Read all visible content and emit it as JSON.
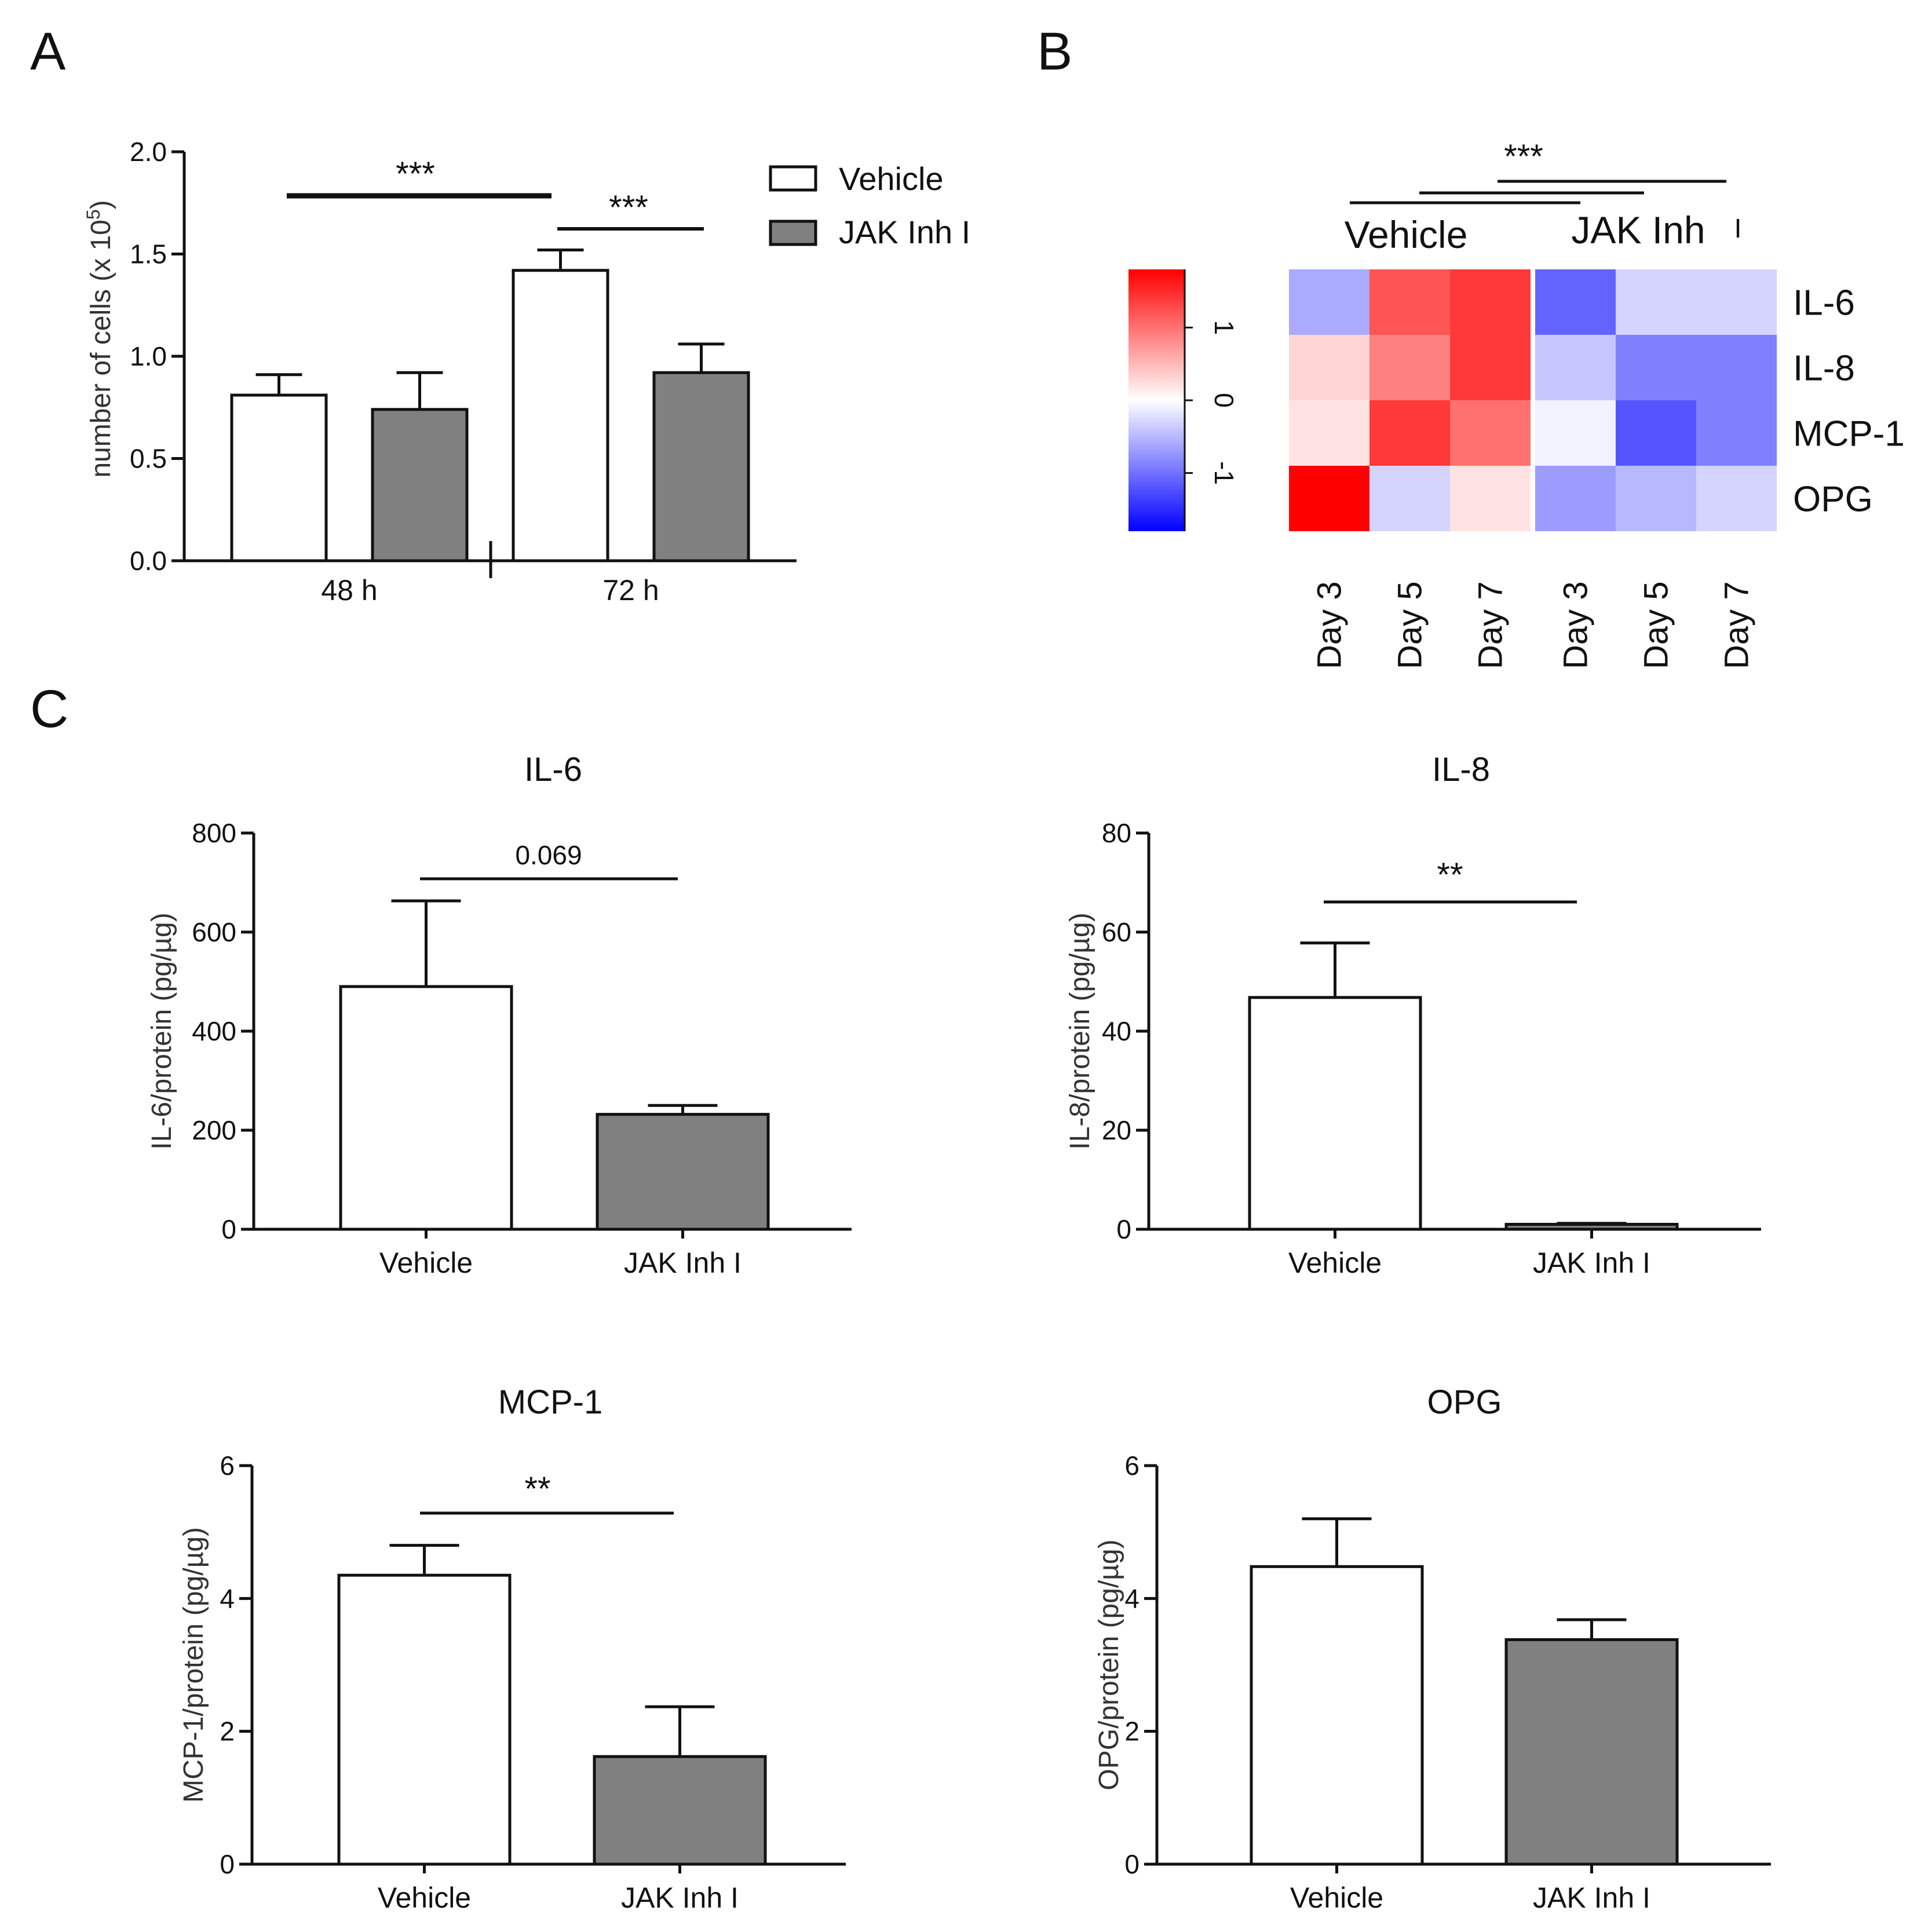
{
  "colors": {
    "vehicle_fill": "#ffffff",
    "jak_fill": "#808080",
    "stroke": "#111111",
    "heat_low": "#0000ff",
    "heat_mid": "#ffffff",
    "heat_high": "#ff0000"
  },
  "panels": {
    "a": {
      "letter": "A"
    },
    "b": {
      "letter": "B"
    },
    "c": {
      "letter": "C"
    }
  },
  "chart_data": [
    {
      "id": "A",
      "type": "bar",
      "title": "",
      "ylabel": "number of cells (x 10",
      "ylabel_sup": "5",
      "ylabel_close": ")",
      "ylim": [
        0,
        2.0
      ],
      "yticks": [
        "0.0",
        "0.5",
        "1.0",
        "1.5",
        "2.0"
      ],
      "categories": [
        "48 h",
        "72 h"
      ],
      "legend": [
        "Vehicle",
        "JAK Inh I"
      ],
      "legend_position": "top-right",
      "series": [
        {
          "name": "Vehicle",
          "values": [
            0.81,
            1.42
          ],
          "errors": [
            0.1,
            0.1
          ]
        },
        {
          "name": "JAK Inh I",
          "values": [
            0.74,
            0.92
          ],
          "errors": [
            0.18,
            0.14
          ]
        }
      ],
      "annotations": [
        {
          "text": "***",
          "between": "48 h vs 72 h"
        },
        {
          "text": "***",
          "between": "72 h Vehicle vs JAK Inh I"
        }
      ]
    },
    {
      "id": "B",
      "type": "heatmap",
      "rows": [
        "IL-6",
        "IL-8",
        "MCP-1",
        "OPG"
      ],
      "columns": [
        "Day 3",
        "Day 5",
        "Day 7",
        "Day 3",
        "Day 5",
        "Day 7"
      ],
      "groups": [
        "Vehicle",
        "JAK Inh",
        "I"
      ],
      "colorbar_ticks": [
        "1",
        "0",
        "-1"
      ],
      "colorbar_range": [
        -1.8,
        1.8
      ],
      "values": [
        [
          -0.6,
          1.2,
          1.4,
          -1.1,
          -0.3,
          -0.3
        ],
        [
          0.3,
          0.9,
          1.4,
          -0.4,
          -0.9,
          -0.9
        ],
        [
          0.2,
          1.4,
          1.0,
          -0.1,
          -1.2,
          -0.9
        ],
        [
          1.8,
          -0.3,
          0.2,
          -0.7,
          -0.5,
          -0.3
        ]
      ],
      "annotations": [
        {
          "text": "***"
        }
      ]
    },
    {
      "id": "IL-6",
      "type": "bar",
      "title": "IL-6",
      "ylabel": "IL-6/protein (pg/µg)",
      "ylim": [
        0,
        800
      ],
      "yticks": [
        "0",
        "200",
        "400",
        "600",
        "800"
      ],
      "categories": [
        "Vehicle",
        "JAK Inh I"
      ],
      "values": [
        490,
        232
      ],
      "errors": [
        173,
        18
      ],
      "annotations": [
        {
          "text": "0.069"
        }
      ]
    },
    {
      "id": "IL-8",
      "type": "bar",
      "title": "IL-8",
      "ylabel": "IL-8/protein (pg/µg)",
      "ylim": [
        0,
        80
      ],
      "yticks": [
        "0",
        "20",
        "40",
        "60",
        "80"
      ],
      "categories": [
        "Vehicle",
        "JAK Inh I"
      ],
      "values": [
        46.8,
        1.0
      ],
      "errors": [
        11.0,
        0.2
      ],
      "annotations": [
        {
          "text": "**"
        }
      ]
    },
    {
      "id": "MCP-1",
      "type": "bar",
      "title": "MCP-1",
      "ylabel": "MCP-1/protein (pg/µg)",
      "ylim": [
        0,
        6
      ],
      "yticks": [
        "0",
        "2",
        "4",
        "6"
      ],
      "categories": [
        "Vehicle",
        "JAK Inh I"
      ],
      "values": [
        4.35,
        1.62
      ],
      "errors": [
        0.45,
        0.75
      ],
      "annotations": [
        {
          "text": "**"
        }
      ]
    },
    {
      "id": "OPG",
      "type": "bar",
      "title": "OPG",
      "ylabel": "OPG/protein (pg/µg)",
      "ylim": [
        0,
        6
      ],
      "yticks": [
        "0",
        "2",
        "4",
        "6"
      ],
      "categories": [
        "Vehicle",
        "JAK Inh I"
      ],
      "values": [
        4.48,
        3.38
      ],
      "errors": [
        0.72,
        0.3
      ],
      "annotations": []
    }
  ]
}
